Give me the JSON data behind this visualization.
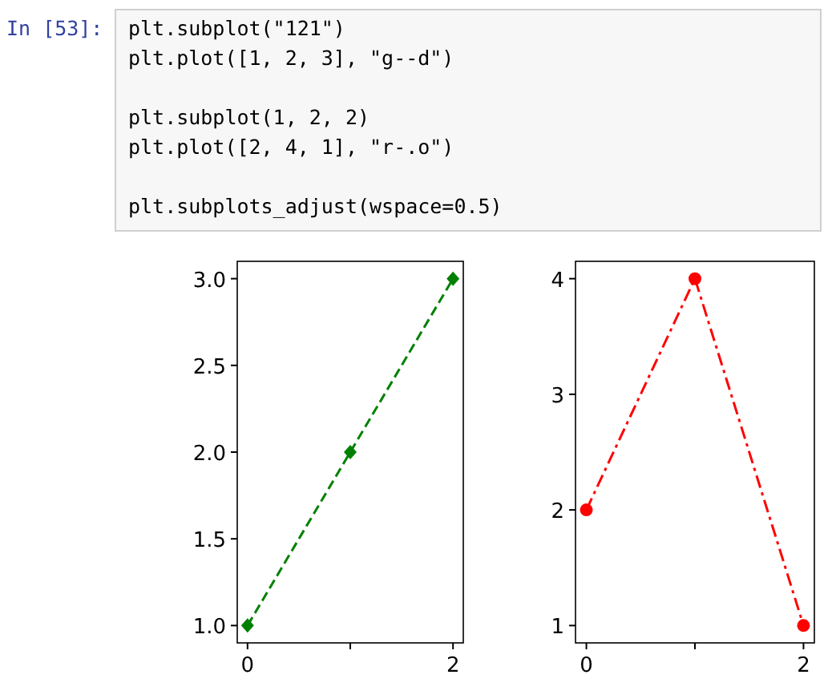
{
  "chart_data": [
    {
      "type": "other",
      "annotations": [
        "In [53]:",
        "plt.subplot(\"121\")\nplt.plot([1, 2, 3], \"g--d\")\n\nplt.subplot(1, 2, 2)\nplt.plot([2, 4, 1], \"r-.o\")\n\nplt.subplots_adjust(wspace=0.5)"
      ]
    },
    {
      "type": "line",
      "x": [
        0,
        1,
        2
      ],
      "series": [
        {
          "color": "#008000",
          "values": [
            1,
            2,
            3
          ]
        }
      ],
      "xlim": [
        -0.1,
        2.1
      ],
      "ylim": [
        0.9,
        3.1
      ],
      "xticks": [
        {
          "value": 0,
          "label": "0"
        },
        {
          "value": 1,
          "label": null
        },
        {
          "value": 2,
          "label": "2"
        }
      ],
      "yticks": [
        {
          "value": 1,
          "label": "1.0"
        },
        {
          "value": 1.5,
          "label": "1.5"
        },
        {
          "value": 2,
          "label": "2.0"
        },
        {
          "value": 2.5,
          "label": "2.5"
        },
        {
          "value": 3,
          "label": "3.0"
        }
      ],
      "marker": "diamond",
      "line_style": "dashed"
    },
    {
      "type": "line",
      "x": [
        0,
        1,
        2
      ],
      "series": [
        {
          "color": "#ff0000",
          "values": [
            2,
            4,
            1
          ]
        }
      ],
      "xlim": [
        -0.1,
        2.1
      ],
      "ylim": [
        0.85,
        4.15
      ],
      "xticks": [
        {
          "value": 0,
          "label": "0"
        },
        {
          "value": 1,
          "label": null
        },
        {
          "value": 2,
          "label": "2"
        }
      ],
      "yticks": [
        1,
        2,
        3,
        4
      ],
      "marker": "circle",
      "line_style": "dashdot"
    }
  ]
}
